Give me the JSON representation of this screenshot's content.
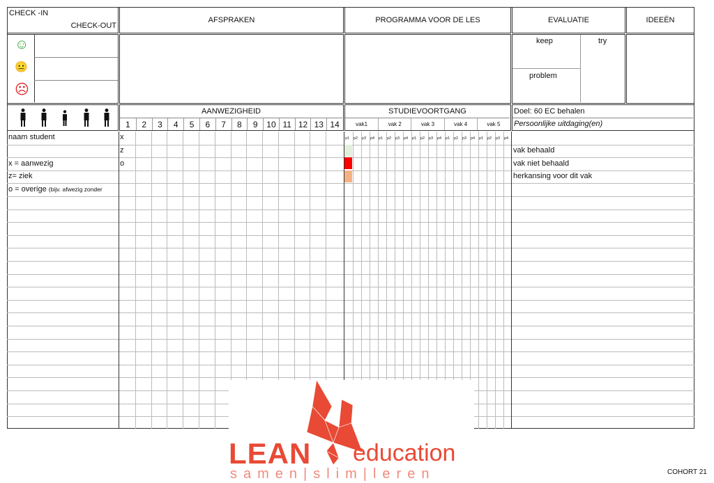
{
  "header": {
    "checkin": "CHECK -IN",
    "checkout": "CHECK-OUT",
    "afspraken": "AFSPRAKEN",
    "programma": "PROGRAMMA VOOR DE LES",
    "evaluatie": "EVALUATIE",
    "ideeen": "IDEEËN"
  },
  "evaluation": {
    "keep": "keep",
    "try": "try",
    "problem": "problem"
  },
  "moods": [
    {
      "icon": "happy-face-icon",
      "glyph": "☺",
      "color": "#3aa63a"
    },
    {
      "icon": "neutral-face-icon",
      "glyph": "😐",
      "color": "#e0b020"
    },
    {
      "icon": "sad-face-icon",
      "glyph": "☹",
      "color": "#e02020"
    }
  ],
  "attendance": {
    "title": "AANWEZIGHEID",
    "weeks": [
      "1",
      "2",
      "3",
      "4",
      "5",
      "6",
      "7",
      "8",
      "9",
      "10",
      "11",
      "12",
      "13",
      "14"
    ],
    "marks": [
      "x",
      "z",
      "o"
    ]
  },
  "progress": {
    "title": "STUDIEVOORTGANG",
    "subjects": [
      "vak1",
      "vak 2",
      "vak 3",
      "vak 4",
      "vak 5"
    ],
    "periods": [
      "p1",
      "p2",
      "p3",
      "p4"
    ],
    "legend_colors": [
      "#e2efda",
      "#ff0000",
      "#f4b183"
    ]
  },
  "goals": {
    "doel": "Doel:  60 EC behalen",
    "persoonlijk": "Persoonlijke uitdaging(en)",
    "legend": [
      "vak behaald",
      "vak niet behaald",
      "herkansing voor dit vak"
    ]
  },
  "students": {
    "name_header": "naam student",
    "legend": [
      "x = aanwezig",
      "z= ziek"
    ],
    "overige": "o = overige",
    "overige_note": "(bijv. afwezig zonder"
  },
  "logo": {
    "brand": "LEAN",
    "sub": "education",
    "tagline": "samen|slim|leren",
    "color": "#e84a35"
  },
  "footer": {
    "cohort": "COHORT 21"
  }
}
